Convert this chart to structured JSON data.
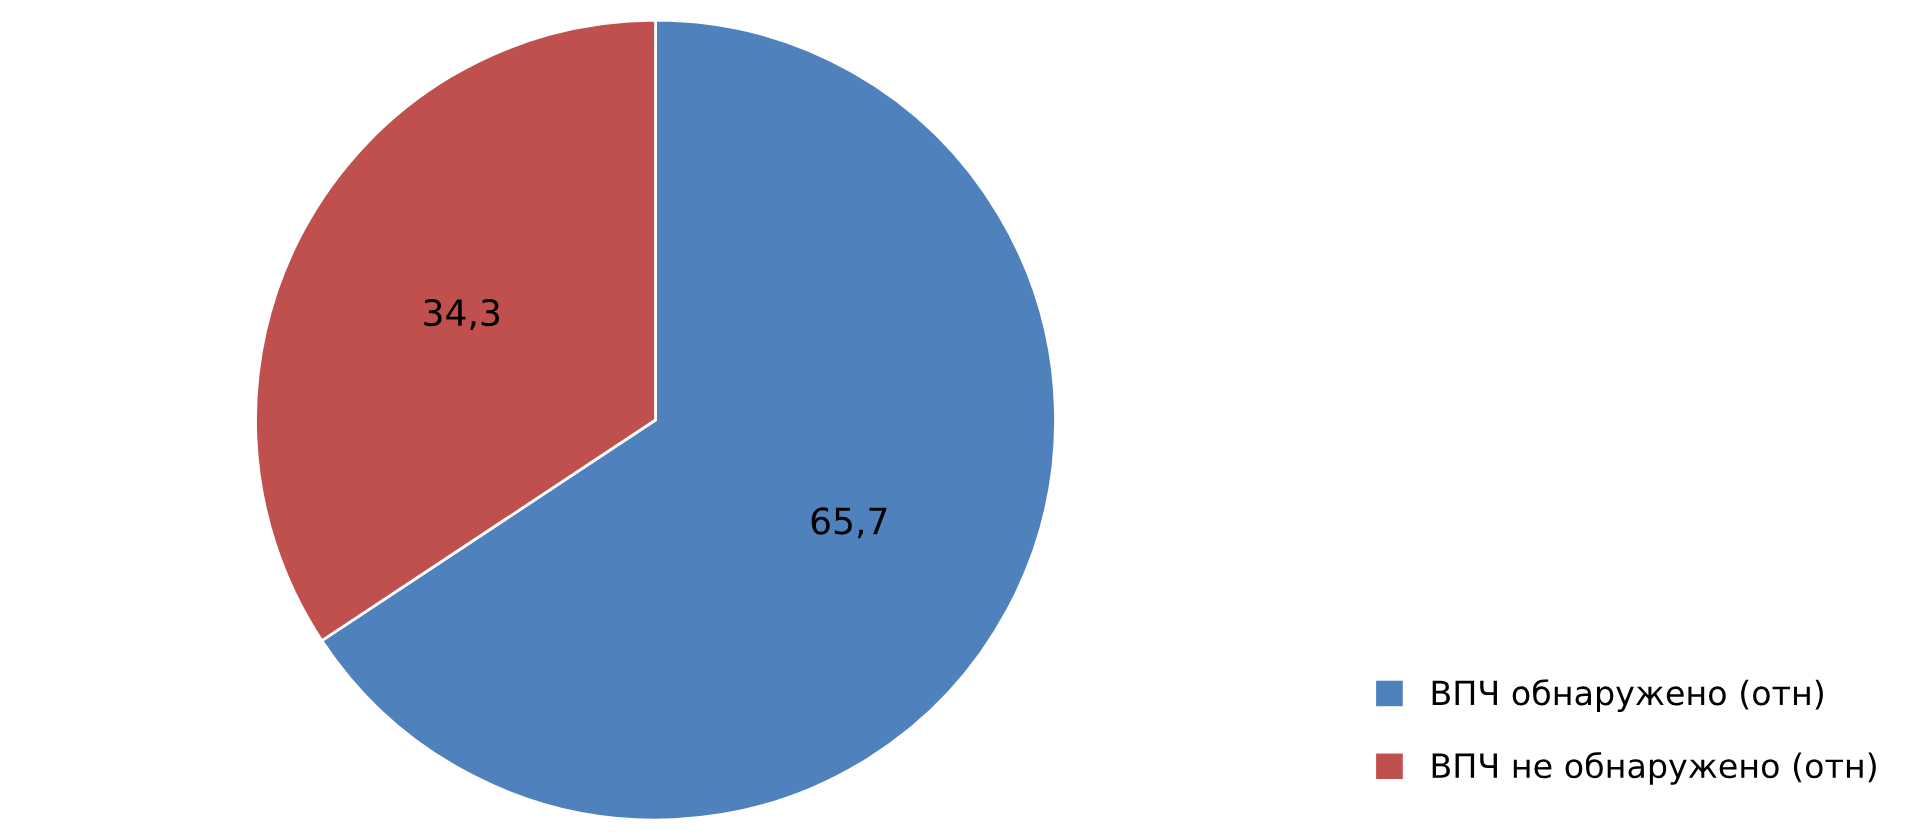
{
  "chart_data": {
    "type": "pie",
    "categories": [
      "ВПЧ обнаружено (отн)",
      "ВПЧ не обнаружено (отн)"
    ],
    "values": [
      65.7,
      34.3
    ],
    "colors": [
      "#4f81bd",
      "#c0504d"
    ],
    "value_labels": [
      "65,7",
      "34,3"
    ],
    "legend": "bottom right"
  }
}
